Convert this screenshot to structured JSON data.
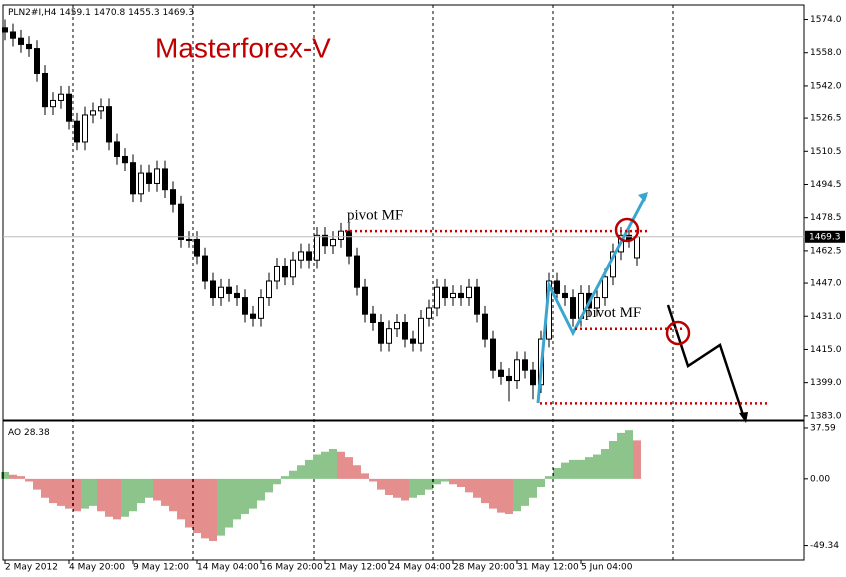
{
  "chart_data": {
    "type": "candlestick",
    "symbol": "PLN2#I,H4",
    "title": "Masterforex-V",
    "categories": [
      "2 May 2012",
      null,
      null,
      null,
      null,
      null,
      null,
      null,
      "4 May 20:00",
      null,
      null,
      null,
      null,
      null,
      null,
      null,
      "9 May 12:00",
      null,
      null,
      null,
      null,
      null,
      null,
      null,
      "14 May 04:00",
      null,
      null,
      null,
      null,
      null,
      null,
      null,
      "16 May 20:00",
      null,
      null,
      null,
      null,
      null,
      null,
      null,
      "21 May 12:00",
      null,
      null,
      null,
      null,
      null,
      null,
      null,
      "24 May 04:00",
      null,
      null,
      null,
      null,
      null,
      null,
      null,
      "28 May 20:00",
      null,
      null,
      null,
      null,
      null,
      null,
      null,
      "31 May 12:00",
      null,
      null,
      null,
      null,
      null,
      null,
      null,
      "5 Jun 04:00",
      null,
      null,
      null,
      null,
      null,
      null,
      null
    ],
    "ohlc": [
      [
        1570,
        1574,
        1564,
        1568
      ],
      [
        1568,
        1572,
        1561,
        1565
      ],
      [
        1565,
        1569,
        1558,
        1562
      ],
      [
        1562,
        1566,
        1556,
        1560
      ],
      [
        1560,
        1564,
        1544,
        1548
      ],
      [
        1548,
        1552,
        1528,
        1532
      ],
      [
        1532,
        1539,
        1528,
        1535
      ],
      [
        1535,
        1542,
        1531,
        1538
      ],
      [
        1538,
        1542,
        1521,
        1525
      ],
      [
        1525,
        1529,
        1511,
        1515
      ],
      [
        1515,
        1532,
        1511,
        1528
      ],
      [
        1528,
        1534,
        1524,
        1530
      ],
      [
        1530,
        1536,
        1526,
        1532
      ],
      [
        1532,
        1536,
        1511,
        1515
      ],
      [
        1515,
        1519,
        1504,
        1508
      ],
      [
        1508,
        1512,
        1501,
        1505
      ],
      [
        1505,
        1509,
        1486,
        1490
      ],
      [
        1490,
        1504,
        1486,
        1500
      ],
      [
        1500,
        1504,
        1491,
        1495
      ],
      [
        1495,
        1506,
        1491,
        1502
      ],
      [
        1502,
        1506,
        1488,
        1492
      ],
      [
        1492,
        1496,
        1481,
        1485
      ],
      [
        1485,
        1489,
        1464,
        1468
      ],
      [
        1468,
        1472,
        1464,
        1468
      ],
      [
        1468,
        1472,
        1456,
        1460
      ],
      [
        1460,
        1464,
        1444,
        1448
      ],
      [
        1448,
        1452,
        1436,
        1440
      ],
      [
        1440,
        1449,
        1436,
        1445
      ],
      [
        1445,
        1449,
        1438,
        1442
      ],
      [
        1442,
        1446,
        1436,
        1440
      ],
      [
        1440,
        1444,
        1428,
        1432
      ],
      [
        1432,
        1436,
        1426,
        1430
      ],
      [
        1430,
        1444,
        1426,
        1440
      ],
      [
        1440,
        1452,
        1436,
        1448
      ],
      [
        1448,
        1459,
        1444,
        1455
      ],
      [
        1455,
        1459,
        1446,
        1450
      ],
      [
        1450,
        1462,
        1446,
        1458
      ],
      [
        1458,
        1466,
        1454,
        1462
      ],
      [
        1462,
        1466,
        1454,
        1458
      ],
      [
        1458,
        1474,
        1454,
        1470
      ],
      [
        1470,
        1474,
        1461,
        1465
      ],
      [
        1465,
        1472,
        1461,
        1468
      ],
      [
        1468,
        1476,
        1464,
        1472
      ],
      [
        1472,
        1476,
        1456,
        1460
      ],
      [
        1460,
        1464,
        1441,
        1445
      ],
      [
        1445,
        1449,
        1428,
        1432
      ],
      [
        1432,
        1436,
        1424,
        1428
      ],
      [
        1428,
        1432,
        1414,
        1418
      ],
      [
        1418,
        1429,
        1414,
        1425
      ],
      [
        1425,
        1432,
        1421,
        1428
      ],
      [
        1428,
        1432,
        1416,
        1420
      ],
      [
        1420,
        1424,
        1414,
        1418
      ],
      [
        1418,
        1434,
        1414,
        1430
      ],
      [
        1430,
        1439,
        1426,
        1435
      ],
      [
        1435,
        1449,
        1431,
        1445
      ],
      [
        1445,
        1449,
        1436,
        1440
      ],
      [
        1440,
        1446,
        1436,
        1442
      ],
      [
        1442,
        1446,
        1436,
        1440
      ],
      [
        1440,
        1449,
        1436,
        1445
      ],
      [
        1445,
        1449,
        1428,
        1432
      ],
      [
        1432,
        1436,
        1416,
        1420
      ],
      [
        1420,
        1424,
        1401,
        1405
      ],
      [
        1405,
        1409,
        1398,
        1402
      ],
      [
        1402,
        1406,
        1390,
        1400
      ],
      [
        1400,
        1414,
        1396,
        1410
      ],
      [
        1410,
        1414,
        1401,
        1405
      ],
      [
        1405,
        1409,
        1391,
        1398
      ],
      [
        1398,
        1424,
        1394,
        1420
      ],
      [
        1420,
        1452,
        1416,
        1448
      ],
      [
        1448,
        1452,
        1438,
        1442
      ],
      [
        1442,
        1446,
        1436,
        1440
      ],
      [
        1440,
        1444,
        1426,
        1430
      ],
      [
        1430,
        1446,
        1426,
        1442
      ],
      [
        1442,
        1446,
        1431,
        1435
      ],
      [
        1435,
        1444,
        1431,
        1440
      ],
      [
        1440,
        1454,
        1436,
        1450
      ],
      [
        1450,
        1466,
        1446,
        1462
      ],
      [
        1462,
        1474,
        1458,
        1470
      ],
      [
        1470,
        1474,
        1464,
        1468
      ],
      [
        1459.1,
        1470.8,
        1455.3,
        1469.3
      ]
    ],
    "ylim": [
      1381,
      1581
    ],
    "yticks": [
      {
        "value": 1574,
        "label": "1574.0"
      },
      {
        "value": 1558,
        "label": "1558.0"
      },
      {
        "value": 1542,
        "label": "1542.0"
      },
      1526.5,
      1510.5,
      1494.5,
      1478.5,
      1462.5,
      {
        "value": 1447,
        "label": "1447.0"
      },
      {
        "value": 1431,
        "label": "1431.0"
      },
      {
        "value": 1415,
        "label": "1415.0"
      },
      {
        "value": 1399,
        "label": "1399.0"
      },
      {
        "value": 1383,
        "label": "1383.0"
      }
    ],
    "levels": [
      {
        "value": 1472,
        "label": "pivot MF"
      },
      {
        "value": 1425,
        "label": "pivot MF"
      },
      {
        "value": 1389
      }
    ],
    "indicator": {
      "name": "AO",
      "values": [
        5,
        3,
        2,
        -2,
        -8,
        -14,
        -18,
        -20,
        -22,
        -24,
        -22,
        -20,
        -24,
        -28,
        -30,
        -28,
        -24,
        -18,
        -14,
        -16,
        -20,
        -24,
        -30,
        -36,
        -40,
        -44,
        -46,
        -42,
        -36,
        -30,
        -26,
        -22,
        -16,
        -10,
        -4,
        2,
        6,
        10,
        14,
        18,
        20,
        22,
        20,
        16,
        10,
        4,
        -2,
        -8,
        -12,
        -14,
        -16,
        -14,
        -12,
        -8,
        -4,
        -2,
        -4,
        -6,
        -10,
        -14,
        -18,
        -22,
        -25,
        -26,
        -24,
        -20,
        -14,
        -6,
        2,
        8,
        12,
        14,
        14,
        16,
        18,
        22,
        28,
        34,
        36,
        28.38
      ],
      "ylim": [
        -60,
        42
      ],
      "yticks": [
        37.59,
        {
          "value": 0,
          "label": "0.00"
        },
        -49.34
      ]
    }
  }
}
